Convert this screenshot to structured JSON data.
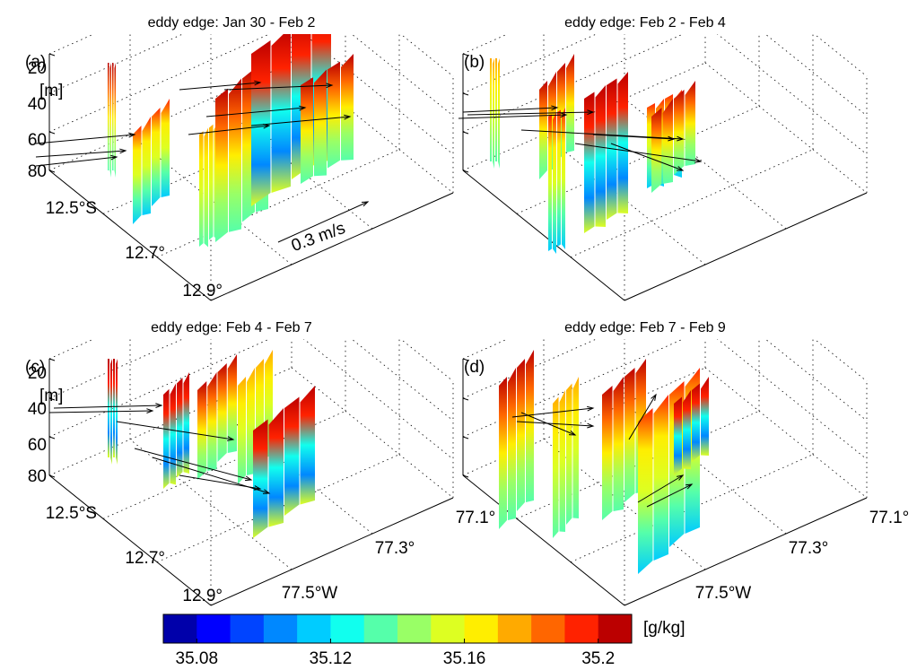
{
  "panels": [
    {
      "label": "(a)",
      "title": "eddy edge: Jan 30 - Feb 2",
      "depth_unit": "[m]",
      "depth_ticks": [
        "20",
        "40",
        "60",
        "80"
      ],
      "lat_ticks": [
        "12.5°S",
        "12.7°",
        "12.9°"
      ],
      "scale_label": "0.3 m/s"
    },
    {
      "label": "(b)",
      "title": "eddy edge:  Feb 2 - Feb 4"
    },
    {
      "label": "(c)",
      "title": "eddy edge: Feb 4 - Feb 7",
      "depth_unit": "[m]",
      "depth_ticks": [
        "20",
        "40",
        "60",
        "80"
      ],
      "lat_ticks": [
        "12.5°S",
        "12.7°",
        "12.9°"
      ],
      "lon_ticks": [
        "77.5°W",
        "77.3°",
        "77.1°"
      ]
    },
    {
      "label": "(d)",
      "title": "eddy edge: Feb 7 - Feb 9",
      "lon_ticks": [
        "77.5°W",
        "77.3°",
        "77.1°"
      ]
    }
  ],
  "colorbar": {
    "unit": "[g/kg]",
    "lim": [
      35.07,
      35.21
    ],
    "ticks": [
      35.08,
      35.12,
      35.16,
      35.2
    ],
    "colors": [
      "#0000aa",
      "#0000ff",
      "#0044ff",
      "#0088ff",
      "#00ccff",
      "#11ffee",
      "#55ffaa",
      "#99ff66",
      "#ddff22",
      "#ffee00",
      "#ffaa00",
      "#ff6600",
      "#ff2200",
      "#bb0000"
    ]
  }
}
